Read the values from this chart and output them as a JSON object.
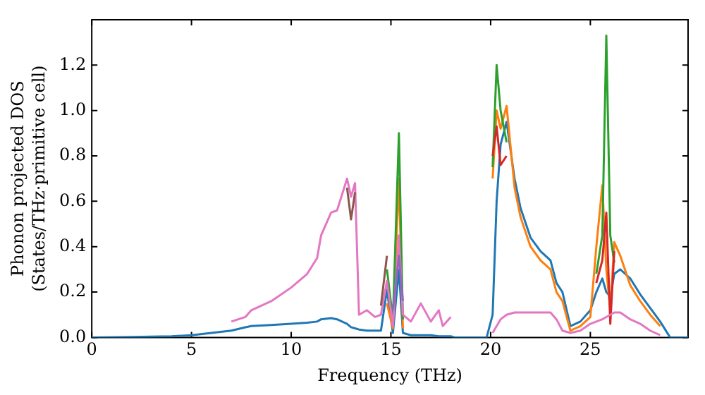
{
  "chart_data": {
    "type": "line",
    "xlabel": "Frequency (THz)",
    "ylabel": "Phonon projected DOS\n(States/THz·primitive cell)",
    "x": [
      0,
      2,
      4,
      5,
      6,
      7,
      7.7,
      8,
      9,
      10,
      10.8,
      11.3,
      11.5,
      12,
      12.3,
      12.8,
      13.0,
      13.2,
      13.4,
      13.8,
      14.2,
      14.5,
      14.8,
      15.1,
      15.4,
      15.6,
      16,
      16.5,
      17,
      17.4,
      17.6,
      18,
      18.2,
      19.8,
      20.1,
      20.3,
      20.5,
      20.8,
      21.2,
      21.5,
      22,
      22.5,
      23,
      23.3,
      23.6,
      24,
      24.5,
      25,
      25.3,
      25.6,
      25.8,
      26,
      26.2,
      26.5,
      27,
      27.5,
      28,
      28.5,
      29,
      29.9
    ],
    "xlim": [
      0,
      29.9
    ],
    "xticks": [
      0,
      5,
      10,
      15,
      20,
      25
    ],
    "ylim": [
      0,
      1.4
    ],
    "yticks": [
      {
        "value": 0,
        "label": "0.0"
      },
      0.2,
      0.4,
      0.6,
      0.8,
      {
        "value": 1,
        "label": "1.0"
      },
      1.2
    ],
    "grid": false,
    "legend": false,
    "marker": "none",
    "line_style": "solid",
    "series": [
      {
        "color": "#1f77b4",
        "values": [
          0,
          0.002,
          0.005,
          0.01,
          0.02,
          0.03,
          0.045,
          0.05,
          0.055,
          0.06,
          0.065,
          0.07,
          0.08,
          0.085,
          0.08,
          0.06,
          0.045,
          0.04,
          0.035,
          0.03,
          0.03,
          0.03,
          0.21,
          0.02,
          0.3,
          0.02,
          0.01,
          0.01,
          0.01,
          0.005,
          0.005,
          0.005,
          0,
          0,
          0.1,
          0.6,
          0.85,
          0.95,
          0.7,
          0.57,
          0.44,
          0.38,
          0.34,
          0.24,
          0.2,
          0.05,
          0.07,
          0.12,
          0.2,
          0.26,
          0.2,
          0.18,
          0.28,
          0.3,
          0.26,
          0.19,
          0.13,
          0.07,
          0,
          0
        ]
      },
      {
        "color": "#ff7f0e",
        "values": [
          null,
          null,
          null,
          null,
          null,
          null,
          null,
          null,
          null,
          null,
          null,
          null,
          null,
          null,
          null,
          null,
          null,
          null,
          null,
          null,
          null,
          null,
          0.15,
          0.04,
          0.7,
          0.04,
          null,
          null,
          null,
          null,
          null,
          null,
          null,
          null,
          0.7,
          1.0,
          0.92,
          1.02,
          0.66,
          0.53,
          0.4,
          0.34,
          0.3,
          0.2,
          0.16,
          0.03,
          0.05,
          0.09,
          0.4,
          0.67,
          0.3,
          0.12,
          0.42,
          0.36,
          0.23,
          0.16,
          0.1,
          0.05,
          null,
          null
        ]
      },
      {
        "color": "#2ca02c",
        "values": [
          null,
          null,
          null,
          null,
          null,
          null,
          null,
          null,
          null,
          null,
          null,
          null,
          null,
          null,
          null,
          null,
          null,
          null,
          null,
          null,
          null,
          null,
          0.3,
          0.08,
          0.9,
          0.08,
          null,
          null,
          null,
          null,
          null,
          null,
          null,
          null,
          0.75,
          1.2,
          1.0,
          0.86,
          null,
          null,
          null,
          null,
          null,
          null,
          null,
          null,
          null,
          null,
          0.28,
          0.45,
          1.33,
          0.45,
          0.33,
          null,
          null,
          null,
          null,
          null,
          null,
          null
        ]
      },
      {
        "color": "#d62728",
        "values": [
          null,
          null,
          null,
          null,
          null,
          null,
          null,
          null,
          null,
          null,
          null,
          null,
          null,
          null,
          null,
          null,
          null,
          null,
          null,
          null,
          null,
          null,
          null,
          null,
          null,
          null,
          null,
          null,
          null,
          null,
          null,
          null,
          null,
          null,
          0.8,
          0.93,
          0.76,
          0.8,
          null,
          null,
          null,
          null,
          null,
          null,
          null,
          null,
          null,
          null,
          0.24,
          0.34,
          0.55,
          0.06,
          0.38,
          null,
          null,
          null,
          null,
          null,
          null,
          null
        ]
      },
      {
        "color": "#e377c2",
        "values": [
          null,
          null,
          null,
          null,
          null,
          0.07,
          0.09,
          0.12,
          0.16,
          0.22,
          0.28,
          0.35,
          0.45,
          0.55,
          0.56,
          0.7,
          0.62,
          0.68,
          0.1,
          0.12,
          0.09,
          0.1,
          0.25,
          0.05,
          0.45,
          0.1,
          0.07,
          0.15,
          0.07,
          0.12,
          0.05,
          0.09,
          null,
          null,
          0.02,
          0.05,
          0.08,
          0.1,
          0.11,
          0.11,
          0.11,
          0.11,
          0.11,
          0.08,
          0.03,
          0.02,
          0.03,
          0.06,
          0.07,
          0.08,
          0.09,
          0.1,
          0.11,
          0.11,
          0.08,
          0.06,
          0.03,
          0.01,
          null,
          null
        ]
      },
      {
        "color": "#8c564b",
        "values": [
          null,
          null,
          null,
          null,
          null,
          null,
          null,
          null,
          null,
          null,
          null,
          null,
          null,
          null,
          null,
          0.66,
          0.52,
          0.64,
          null,
          null,
          null,
          0.14,
          0.36,
          null,
          null,
          null,
          null,
          null,
          null,
          null,
          null,
          null,
          null,
          null,
          null,
          null,
          null,
          null,
          null,
          null,
          null,
          null,
          null,
          null,
          null,
          null,
          null,
          null,
          null,
          null,
          null,
          null,
          null,
          null,
          null,
          null,
          null,
          null,
          null,
          null
        ]
      },
      {
        "color": "#9467bd",
        "values": [
          null,
          null,
          null,
          null,
          null,
          null,
          null,
          null,
          null,
          null,
          null,
          null,
          null,
          null,
          null,
          null,
          null,
          null,
          null,
          null,
          null,
          null,
          null,
          0.12,
          0.36,
          0.16,
          null,
          null,
          null,
          null,
          null,
          null,
          null,
          null,
          null,
          null,
          null,
          null,
          null,
          null,
          null,
          null,
          null,
          null,
          null,
          null,
          null,
          null,
          null,
          null,
          null,
          null,
          null,
          null,
          null,
          null,
          null,
          null,
          null,
          null
        ]
      }
    ]
  }
}
